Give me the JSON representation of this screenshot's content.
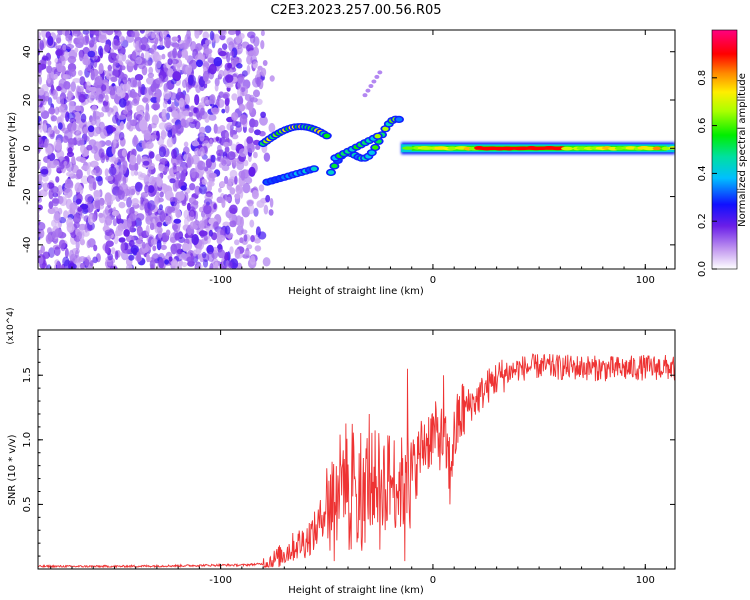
{
  "title": "C2E3.2023.257.00.56.R05",
  "chart_data": [
    {
      "type": "heatmap",
      "xlabel": "Height of straight line (km)",
      "ylabel": "Frequency (Hz)",
      "xlim": [
        -186,
        114
      ],
      "ylim": [
        -50,
        49
      ],
      "xticks": [
        -100,
        0,
        100
      ],
      "yticks": [
        -40,
        -20,
        0,
        20,
        40
      ],
      "grid": false,
      "colorbar": {
        "label": "Normalized spectral amplitude",
        "range": [
          0,
          1
        ],
        "ticks": [
          "0.0",
          "0.2",
          "0.4",
          "0.6",
          "0.8"
        ],
        "colormap": "rainbow (white-violet-blue-cyan-green-yellow-red-magenta)"
      },
      "features": [
        {
          "name": "noise region",
          "x_range": [
            -186,
            -75
          ],
          "y_range": [
            -50,
            49
          ],
          "amplitude": "low (violet)"
        },
        {
          "name": "steady line",
          "x_range": [
            -15,
            114
          ],
          "y": 0,
          "amplitude": "high (red core 20 to 60 km)"
        },
        {
          "name": "curved trace",
          "x_range": [
            -80,
            -50
          ],
          "y_range": [
            2,
            9
          ]
        },
        {
          "name": "lower branch",
          "x_range": [
            -78,
            -55
          ],
          "y_range": [
            -14,
            -8
          ]
        },
        {
          "name": "arc segments",
          "x_range": [
            -48,
            -15
          ],
          "y_range": [
            -12,
            12
          ]
        },
        {
          "name": "faint streak",
          "x_range": [
            -32,
            -24
          ],
          "y_range": [
            22,
            33
          ]
        }
      ]
    },
    {
      "type": "line",
      "xlabel": "Height of straight line (km)",
      "ylabel": "SNR (10 * v/v)",
      "y_multiplier": "(x10^4)",
      "xlim": [
        -186,
        114
      ],
      "ylim": [
        0,
        18500
      ],
      "xticks": [
        -100,
        0,
        100
      ],
      "yticks": [
        5000,
        10000,
        15000
      ],
      "ytick_labels": [
        "0.5",
        "1.0",
        "1.5"
      ],
      "grid": false,
      "series": [
        {
          "color": "#ee3333",
          "x": [
            -186,
            -150,
            -120,
            -100,
            -90,
            -80,
            -75,
            -70,
            -65,
            -60,
            -55,
            -50,
            -45,
            -40,
            -35,
            -30,
            -25,
            -20,
            -15,
            -12,
            -10,
            -8,
            -5,
            0,
            5,
            8,
            10,
            12,
            15,
            20,
            25,
            30,
            40,
            50,
            60,
            70,
            80,
            90,
            100,
            110,
            114
          ],
          "y": [
            200,
            200,
            250,
            300,
            300,
            400,
            700,
            1200,
            1800,
            2200,
            3000,
            5000,
            6500,
            8000,
            7500,
            7000,
            7000,
            7000,
            6500,
            7000,
            7500,
            8000,
            9500,
            10500,
            10000,
            8000,
            10000,
            11500,
            12500,
            13000,
            14000,
            14800,
            15500,
            15700,
            15600,
            15600,
            15500,
            15500,
            15600,
            15600,
            15500
          ],
          "spikes_x": [
            -30,
            -12,
            5
          ],
          "spikes_y": [
            12000,
            15500,
            15000
          ],
          "dips_x": [
            -25,
            8
          ],
          "dips_y": [
            1500,
            5000
          ]
        }
      ]
    }
  ]
}
